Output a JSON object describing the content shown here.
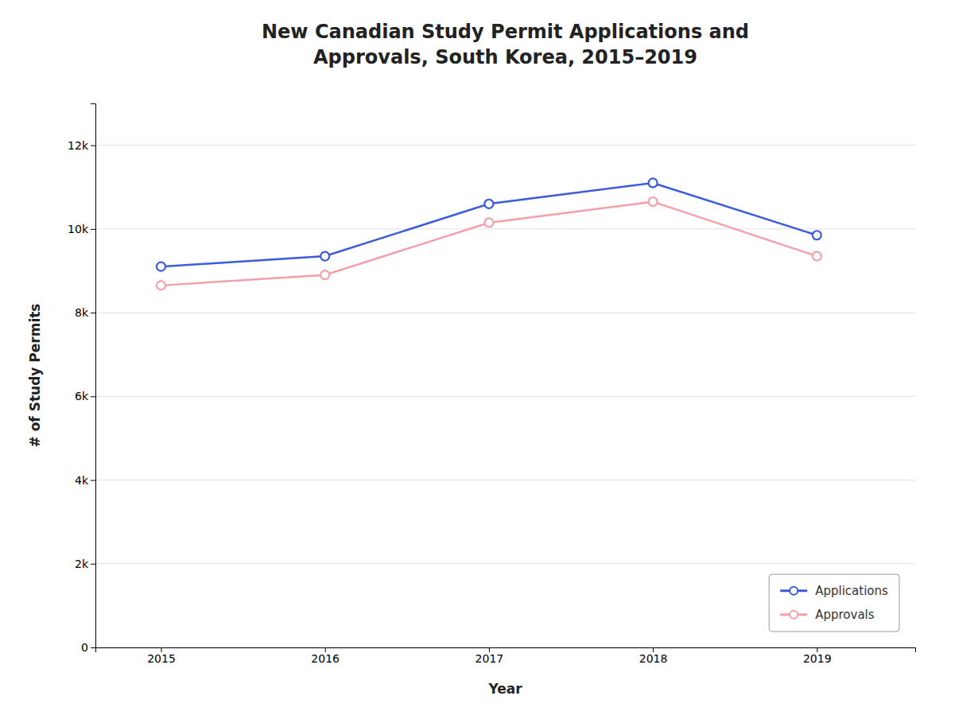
{
  "chart_data": {
    "type": "line",
    "title": "New Canadian Study Permit Applications and\nApprovals, South Korea, 2015–2019",
    "xlabel": "Year",
    "ylabel": "# of Study Permits",
    "x": [
      2015,
      2016,
      2017,
      2018,
      2019
    ],
    "xlim": [
      2014.6,
      2019.6
    ],
    "xticks": [
      2015,
      2016,
      2017,
      2018,
      2019
    ],
    "ylim": [
      0,
      13000
    ],
    "yticks": [
      0,
      {
        "value": 2000,
        "label": "2k"
      },
      {
        "value": 4000,
        "label": "4k"
      },
      {
        "value": 6000,
        "label": "6k"
      },
      {
        "value": 8000,
        "label": "8k"
      },
      {
        "value": 10000,
        "label": "10k"
      },
      {
        "value": 12000,
        "label": "12k"
      }
    ],
    "grid": true,
    "legend": "lower right",
    "series": [
      {
        "name": "Applications",
        "color": "#3B5BDB",
        "marker": "circle",
        "values": [
          9100,
          9350,
          10600,
          11100,
          9850
        ]
      },
      {
        "name": "Approvals",
        "color": "#F4A0A8",
        "marker": "circle",
        "values": [
          8650,
          8900,
          10150,
          10650,
          9350
        ]
      }
    ]
  }
}
